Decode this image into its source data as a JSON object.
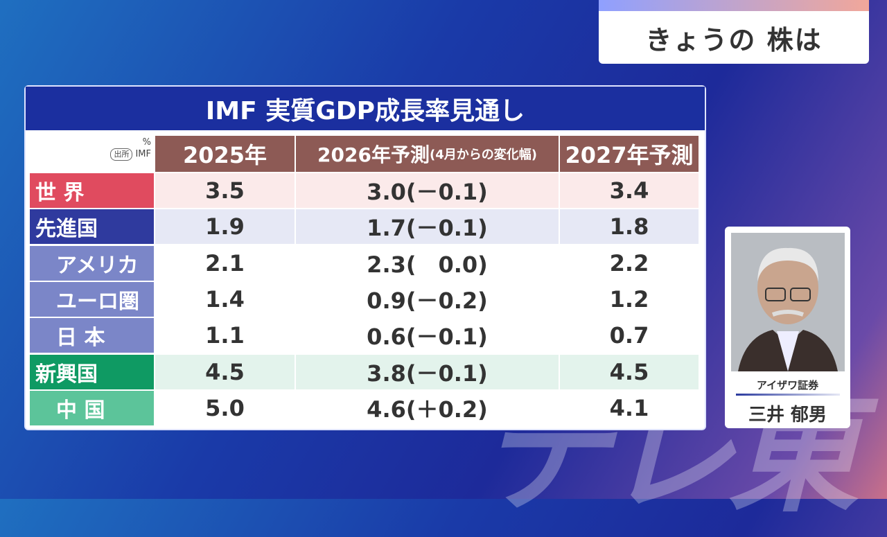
{
  "corner": {
    "title": "きょうの 株は"
  },
  "watermark": "テレ東",
  "table": {
    "title": "IMF 実質GDP成長率見通し",
    "unit": "%",
    "source_tag": "出所",
    "source": "IMF",
    "headers": [
      "2025年",
      "2026年予測",
      "(4月からの変化幅)",
      "2027年予測"
    ],
    "rows": [
      [
        "世 界",
        "3.5",
        "3.0(－0.1)",
        "3.4"
      ],
      [
        "先進国",
        "1.9",
        "1.7(－0.1)",
        "1.8"
      ],
      [
        "　アメリカ",
        "2.1",
        "2.3(　0.0)",
        "2.2"
      ],
      [
        "　ユーロ圏",
        "1.4",
        "0.9(－0.2)",
        "1.2"
      ],
      [
        "　日 本",
        "1.1",
        "0.6(－0.1)",
        "0.7"
      ],
      [
        "新興国",
        "4.5",
        "3.8(－0.1)",
        "4.5"
      ],
      [
        "　中 国",
        "5.0",
        "4.6(＋0.2)",
        "4.1"
      ]
    ]
  },
  "guest": {
    "company": "アイザワ証券",
    "name": "三井 郁男"
  }
}
